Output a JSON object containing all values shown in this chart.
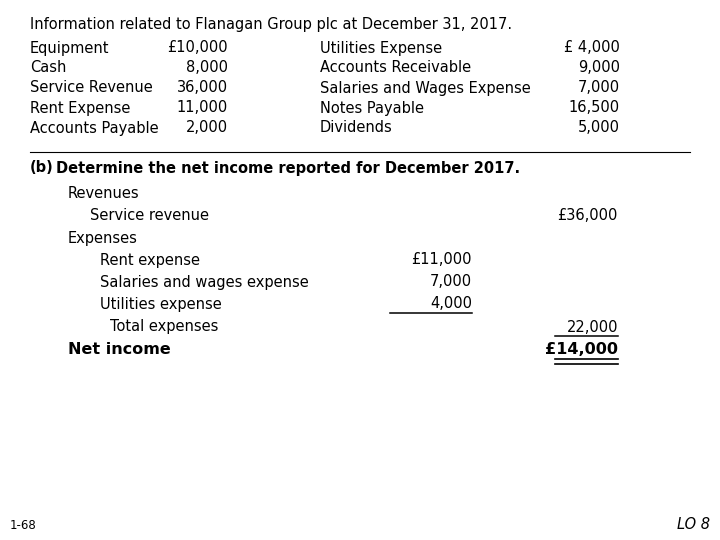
{
  "bg_color": "#ffffff",
  "text_color": "#000000",
  "title": "Information related to Flanagan Group plc at December 31, 2017.",
  "left_items": [
    [
      "Equipment",
      "£10,000"
    ],
    [
      "Cash",
      "8,000"
    ],
    [
      "Service Revenue",
      "36,000"
    ],
    [
      "Rent Expense",
      "11,000"
    ],
    [
      "Accounts Payable",
      "2,000"
    ]
  ],
  "right_items": [
    [
      "Utilities Expense",
      "£ 4,000"
    ],
    [
      "Accounts Receivable",
      "9,000"
    ],
    [
      "Salaries and Wages Expense",
      "7,000"
    ],
    [
      "Notes Payable",
      "16,500"
    ],
    [
      "Dividends",
      "5,000"
    ]
  ],
  "part_b_label": "(b)",
  "part_b_text": "Determine the net income reported for December 2017.",
  "revenues_label": "Revenues",
  "service_revenue_label": "Service revenue",
  "service_revenue_value": "£36,000",
  "expenses_label": "Expenses",
  "expense_lines": [
    [
      "Rent expense",
      "£11,000"
    ],
    [
      "Salaries and wages expense",
      "7,000"
    ],
    [
      "Utilities expense",
      "4,000"
    ]
  ],
  "total_expenses_label": "Total expenses",
  "total_expenses_value": "22,000",
  "net_income_label": "Net income",
  "net_income_value": "£14,000",
  "footnote": "1-68",
  "lo_label": "LO 8",
  "fs": 10.5
}
